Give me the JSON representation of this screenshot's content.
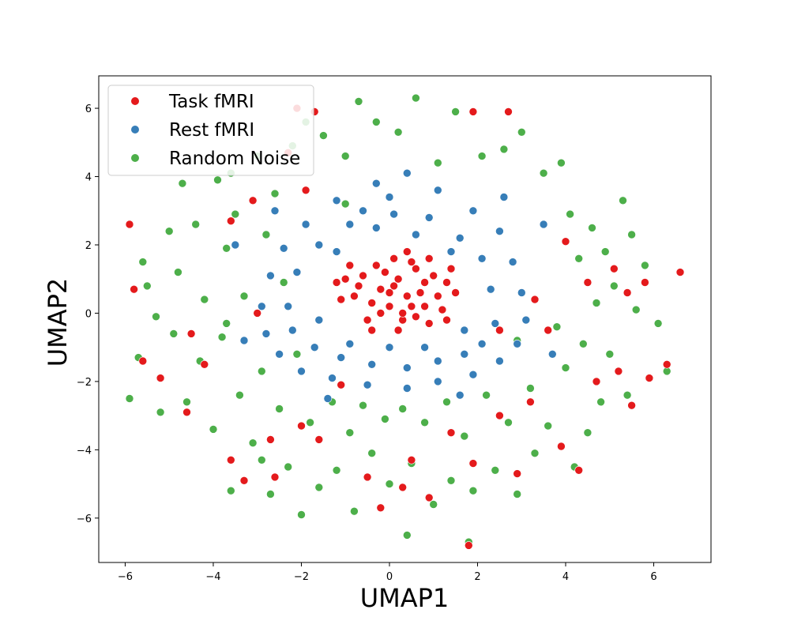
{
  "chart_data": {
    "type": "scatter",
    "title": "",
    "xlabel": "UMAP1",
    "ylabel": "UMAP2",
    "xlim": [
      -6.6,
      7.3
    ],
    "ylim": [
      -7.3,
      6.95
    ],
    "xticks": [
      -6,
      -4,
      -2,
      0,
      2,
      4,
      6
    ],
    "yticks": [
      -6,
      -4,
      -2,
      0,
      2,
      4,
      6
    ],
    "xtick_labels": [
      "−6",
      "−4",
      "−2",
      "0",
      "2",
      "4",
      "6"
    ],
    "ytick_labels": [
      "−6",
      "−4",
      "−2",
      "0",
      "2",
      "4",
      "6"
    ],
    "grid": false,
    "legend_position": "upper-left",
    "series": [
      {
        "name": "Task fMRI",
        "color": "#e41a1c",
        "points": [
          [
            0.0,
            0.6
          ],
          [
            0.2,
            1.0
          ],
          [
            -0.4,
            0.3
          ],
          [
            0.5,
            0.2
          ],
          [
            0.8,
            0.9
          ],
          [
            -0.6,
            1.1
          ],
          [
            0.3,
            -0.2
          ],
          [
            1.1,
            0.5
          ],
          [
            -0.8,
            0.5
          ],
          [
            0.1,
            1.6
          ],
          [
            0.6,
            1.3
          ],
          [
            -0.2,
            0.0
          ],
          [
            1.3,
            0.9
          ],
          [
            -1.0,
            1.0
          ],
          [
            0.4,
            0.5
          ],
          [
            0.9,
            -0.3
          ],
          [
            -0.3,
            1.4
          ],
          [
            0.7,
            0.6
          ],
          [
            1.2,
            0.1
          ],
          [
            -0.5,
            -0.2
          ],
          [
            0.0,
            0.2
          ],
          [
            0.4,
            1.8
          ],
          [
            -1.1,
            0.4
          ],
          [
            1.4,
            1.3
          ],
          [
            0.2,
            -0.5
          ],
          [
            -0.7,
            0.8
          ],
          [
            0.9,
            1.6
          ],
          [
            0.1,
            0.8
          ],
          [
            -0.1,
            1.2
          ],
          [
            0.6,
            -0.1
          ],
          [
            1.0,
            1.1
          ],
          [
            -0.4,
            -0.5
          ],
          [
            0.3,
            0.0
          ],
          [
            -0.9,
            1.4
          ],
          [
            1.5,
            0.6
          ],
          [
            0.8,
            0.2
          ],
          [
            -1.2,
            0.9
          ],
          [
            0.5,
            1.5
          ],
          [
            1.3,
            -0.2
          ],
          [
            -0.2,
            0.7
          ],
          [
            -5.9,
            2.6
          ],
          [
            -5.8,
            0.7
          ],
          [
            -5.6,
            -1.4
          ],
          [
            -4.6,
            -2.9
          ],
          [
            -4.2,
            -1.5
          ],
          [
            -3.6,
            -4.3
          ],
          [
            -3.3,
            -4.9
          ],
          [
            -2.7,
            -3.7
          ],
          [
            -2.6,
            -4.8
          ],
          [
            -2.0,
            -3.3
          ],
          [
            -1.6,
            -3.7
          ],
          [
            -1.1,
            -2.1
          ],
          [
            -0.5,
            -4.8
          ],
          [
            -0.2,
            -5.7
          ],
          [
            0.3,
            -5.1
          ],
          [
            0.5,
            -4.3
          ],
          [
            0.9,
            -5.4
          ],
          [
            1.4,
            -3.5
          ],
          [
            1.9,
            -4.4
          ],
          [
            1.8,
            -6.8
          ],
          [
            2.5,
            -3.0
          ],
          [
            2.9,
            -4.7
          ],
          [
            3.2,
            -2.6
          ],
          [
            3.9,
            -3.9
          ],
          [
            4.3,
            -4.6
          ],
          [
            4.7,
            -2.0
          ],
          [
            5.2,
            -1.7
          ],
          [
            5.5,
            -2.7
          ],
          [
            5.9,
            -1.9
          ],
          [
            6.3,
            -1.5
          ],
          [
            6.6,
            1.2
          ],
          [
            5.8,
            0.9
          ],
          [
            5.4,
            0.6
          ],
          [
            5.1,
            1.3
          ],
          [
            4.5,
            0.9
          ],
          [
            4.0,
            2.1
          ],
          [
            3.6,
            -0.5
          ],
          [
            3.3,
            0.4
          ],
          [
            2.5,
            -0.5
          ],
          [
            -2.1,
            6.0
          ],
          [
            -1.7,
            5.9
          ],
          [
            -2.3,
            4.7
          ],
          [
            -1.9,
            3.6
          ],
          [
            -3.1,
            3.3
          ],
          [
            -3.6,
            2.7
          ],
          [
            -4.5,
            -0.6
          ],
          [
            -3.0,
            0.0
          ],
          [
            -5.2,
            -1.9
          ],
          [
            2.7,
            5.9
          ],
          [
            1.9,
            5.9
          ]
        ]
      },
      {
        "name": "Rest fMRI",
        "color": "#377eb8",
        "points": [
          [
            0.4,
            4.1
          ],
          [
            -0.3,
            3.8
          ],
          [
            1.1,
            3.6
          ],
          [
            -1.2,
            3.3
          ],
          [
            1.9,
            3.0
          ],
          [
            -1.9,
            2.6
          ],
          [
            2.5,
            2.4
          ],
          [
            -2.4,
            1.9
          ],
          [
            2.8,
            1.5
          ],
          [
            -2.7,
            1.1
          ],
          [
            3.0,
            0.6
          ],
          [
            -2.9,
            0.2
          ],
          [
            3.1,
            -0.2
          ],
          [
            -2.8,
            -0.6
          ],
          [
            2.9,
            -0.9
          ],
          [
            -2.5,
            -1.2
          ],
          [
            2.5,
            -1.4
          ],
          [
            -2.0,
            -1.7
          ],
          [
            1.9,
            -1.8
          ],
          [
            -1.3,
            -1.9
          ],
          [
            1.1,
            -2.0
          ],
          [
            -0.5,
            -2.1
          ],
          [
            0.4,
            -2.2
          ],
          [
            0.0,
            3.4
          ],
          [
            0.9,
            2.8
          ],
          [
            -0.9,
            2.6
          ],
          [
            1.6,
            2.2
          ],
          [
            -1.6,
            2.0
          ],
          [
            2.1,
            1.6
          ],
          [
            -2.1,
            1.2
          ],
          [
            2.3,
            0.7
          ],
          [
            -2.3,
            0.2
          ],
          [
            2.4,
            -0.3
          ],
          [
            -2.2,
            -0.5
          ],
          [
            2.1,
            -0.9
          ],
          [
            -1.7,
            -1.0
          ],
          [
            1.7,
            -1.2
          ],
          [
            -1.1,
            -1.3
          ],
          [
            1.1,
            -1.4
          ],
          [
            -0.4,
            -1.5
          ],
          [
            0.4,
            -1.6
          ],
          [
            -0.3,
            2.5
          ],
          [
            0.6,
            2.3
          ],
          [
            -1.2,
            1.8
          ],
          [
            1.4,
            1.8
          ],
          [
            -1.6,
            -0.2
          ],
          [
            1.7,
            -0.5
          ],
          [
            -0.9,
            -0.9
          ],
          [
            0.8,
            -1.0
          ],
          [
            0.0,
            -1.0
          ],
          [
            -3.5,
            2.0
          ],
          [
            -3.3,
            -0.8
          ],
          [
            3.5,
            2.6
          ],
          [
            3.7,
            -1.2
          ],
          [
            -1.4,
            -2.5
          ],
          [
            1.6,
            -2.4
          ],
          [
            0.1,
            2.9
          ],
          [
            -0.6,
            3.0
          ],
          [
            2.6,
            3.4
          ],
          [
            -2.6,
            3.0
          ]
        ]
      },
      {
        "name": "Random Noise",
        "color": "#4daf4a",
        "points": [
          [
            -5.9,
            -2.5
          ],
          [
            -5.6,
            1.5
          ],
          [
            -5.5,
            0.8
          ],
          [
            -5.3,
            -0.1
          ],
          [
            -5.2,
            -2.9
          ],
          [
            -5.0,
            2.4
          ],
          [
            -4.9,
            -0.6
          ],
          [
            -4.8,
            1.2
          ],
          [
            -4.6,
            -2.6
          ],
          [
            -4.4,
            2.6
          ],
          [
            -4.3,
            -1.4
          ],
          [
            -4.2,
            0.4
          ],
          [
            -4.0,
            -3.4
          ],
          [
            -3.9,
            3.9
          ],
          [
            -3.8,
            -0.7
          ],
          [
            -3.7,
            1.9
          ],
          [
            -3.6,
            -5.2
          ],
          [
            -3.5,
            2.9
          ],
          [
            -3.4,
            -2.4
          ],
          [
            -3.3,
            0.5
          ],
          [
            -3.1,
            -3.8
          ],
          [
            -3.0,
            4.6
          ],
          [
            -2.9,
            -1.7
          ],
          [
            -2.8,
            2.3
          ],
          [
            -2.7,
            -5.3
          ],
          [
            -2.6,
            3.5
          ],
          [
            -2.5,
            -2.8
          ],
          [
            -2.4,
            0.9
          ],
          [
            -2.3,
            -4.5
          ],
          [
            -2.2,
            4.9
          ],
          [
            -2.1,
            -1.2
          ],
          [
            -2.0,
            -5.9
          ],
          [
            -1.9,
            5.6
          ],
          [
            -1.8,
            -3.2
          ],
          [
            -1.6,
            -5.1
          ],
          [
            -1.5,
            5.2
          ],
          [
            -1.3,
            -2.6
          ],
          [
            -1.2,
            -4.6
          ],
          [
            -1.0,
            4.6
          ],
          [
            -0.9,
            -3.5
          ],
          [
            -0.8,
            -5.8
          ],
          [
            -0.7,
            6.2
          ],
          [
            -0.6,
            -2.7
          ],
          [
            -0.4,
            -4.1
          ],
          [
            -0.3,
            5.6
          ],
          [
            -0.1,
            -3.1
          ],
          [
            0.0,
            -5.0
          ],
          [
            0.2,
            5.3
          ],
          [
            0.3,
            -2.8
          ],
          [
            0.5,
            -4.4
          ],
          [
            0.6,
            6.3
          ],
          [
            0.8,
            -3.2
          ],
          [
            1.0,
            -5.6
          ],
          [
            1.1,
            4.4
          ],
          [
            1.3,
            -2.6
          ],
          [
            1.4,
            -4.9
          ],
          [
            1.5,
            5.9
          ],
          [
            1.7,
            -3.6
          ],
          [
            1.9,
            -5.2
          ],
          [
            2.1,
            4.6
          ],
          [
            2.2,
            -2.4
          ],
          [
            2.4,
            -4.6
          ],
          [
            2.6,
            4.8
          ],
          [
            2.7,
            -3.2
          ],
          [
            2.9,
            -5.3
          ],
          [
            3.0,
            5.3
          ],
          [
            3.2,
            -2.2
          ],
          [
            3.3,
            -4.1
          ],
          [
            3.5,
            4.1
          ],
          [
            3.6,
            -3.3
          ],
          [
            3.8,
            -0.4
          ],
          [
            3.9,
            4.4
          ],
          [
            4.0,
            -1.6
          ],
          [
            4.1,
            2.9
          ],
          [
            4.2,
            -4.5
          ],
          [
            4.3,
            1.6
          ],
          [
            4.4,
            -0.9
          ],
          [
            4.5,
            -3.5
          ],
          [
            4.6,
            2.5
          ],
          [
            4.7,
            0.3
          ],
          [
            4.8,
            -2.6
          ],
          [
            4.9,
            1.8
          ],
          [
            5.0,
            -1.2
          ],
          [
            5.1,
            0.8
          ],
          [
            5.3,
            3.3
          ],
          [
            5.4,
            -2.4
          ],
          [
            5.5,
            2.3
          ],
          [
            5.6,
            0.1
          ],
          [
            5.8,
            1.4
          ],
          [
            6.1,
            -0.3
          ],
          [
            6.3,
            -1.7
          ],
          [
            -5.7,
            -1.3
          ],
          [
            -4.7,
            3.8
          ],
          [
            -3.6,
            4.1
          ],
          [
            -2.9,
            -4.3
          ],
          [
            1.8,
            -6.7
          ],
          [
            0.4,
            -6.5
          ],
          [
            -1.0,
            3.2
          ],
          [
            2.9,
            -0.8
          ],
          [
            -3.7,
            -0.3
          ]
        ]
      }
    ]
  }
}
